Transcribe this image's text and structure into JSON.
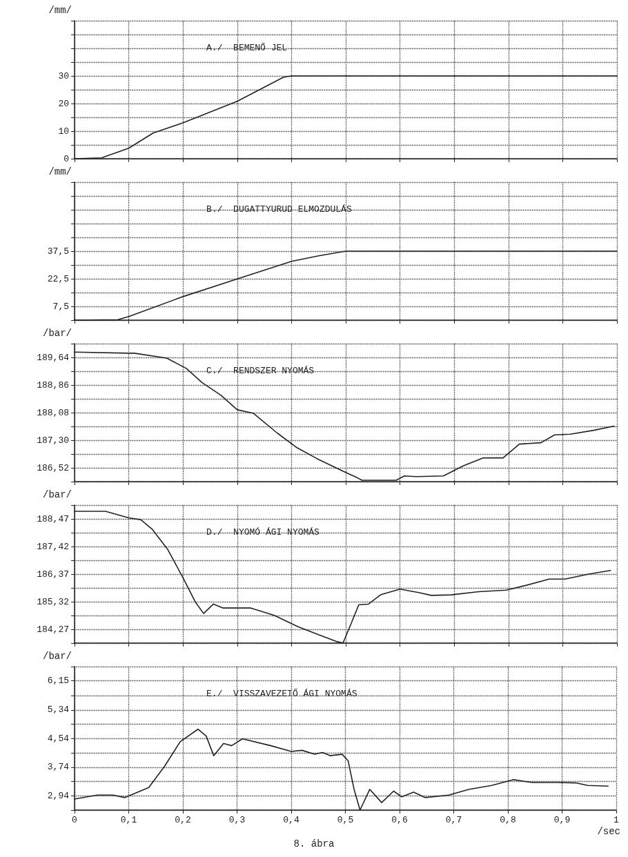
{
  "chart_data": [
    {
      "type": "line",
      "title": "A./  BEMENŐ JEL",
      "ylabel": "/mm/",
      "tick_labels": "y",
      "grid": true,
      "marker": "none",
      "line_style": "solid",
      "xlim": [
        0,
        1
      ],
      "ylim": [
        0,
        50
      ],
      "xticks": [
        0,
        0.1,
        0.2,
        0.3,
        0.4,
        0.5,
        0.6,
        0.7,
        0.8,
        0.9,
        1
      ],
      "yticks": [
        0,
        {
          "value": 5,
          "label": null
        },
        10,
        {
          "value": 15,
          "label": null
        },
        20,
        {
          "value": 25,
          "label": null
        },
        30,
        {
          "value": 35,
          "label": null
        },
        {
          "value": 40,
          "label": null
        },
        {
          "value": 45,
          "label": null
        },
        {
          "value": 50,
          "label": null
        }
      ],
      "series": [
        {
          "color": "#222222",
          "x": [
            0,
            0.05,
            0.1,
            0.145,
            0.2,
            0.3,
            0.385,
            0.4,
            0.5,
            0.6,
            0.7,
            0.8,
            0.9,
            1
          ],
          "values": [
            0,
            0.3,
            3.8,
            9.3,
            13,
            20.8,
            29.5,
            30,
            30,
            30,
            30,
            30,
            30,
            30
          ]
        }
      ]
    },
    {
      "type": "line",
      "title": "B./  DUGATTYURUD ELMOZDULÁS",
      "ylabel": "/mm/",
      "tick_labels": "y",
      "grid": true,
      "marker": "none",
      "line_style": "solid",
      "xlim": [
        0,
        1
      ],
      "ylim": [
        0,
        75
      ],
      "xticks": [
        0,
        0.1,
        0.2,
        0.3,
        0.4,
        0.5,
        0.6,
        0.7,
        0.8,
        0.9,
        1
      ],
      "yticks": [
        {
          "value": 0,
          "label": null
        },
        {
          "value": 7.5,
          "label": "7,5"
        },
        {
          "value": 15,
          "label": null
        },
        {
          "value": 22.5,
          "label": "22,5"
        },
        {
          "value": 30,
          "label": null
        },
        {
          "value": 37.5,
          "label": "37,5"
        },
        {
          "value": 45,
          "label": null
        },
        {
          "value": 52.5,
          "label": null
        },
        {
          "value": 60,
          "label": null
        },
        {
          "value": 67.5,
          "label": null
        },
        {
          "value": 75,
          "label": null
        }
      ],
      "series": [
        {
          "color": "#222222",
          "x": [
            0,
            0.08,
            0.1,
            0.2,
            0.3,
            0.4,
            0.45,
            0.5,
            0.6,
            0.7,
            0.8,
            0.9,
            1
          ],
          "values": [
            0,
            0.3,
            2,
            12.8,
            22.4,
            32,
            35,
            37.5,
            37.5,
            37.5,
            37.5,
            37.5,
            37.5
          ]
        }
      ]
    },
    {
      "type": "line",
      "title": "C./  RENDSZER NYOMÁS",
      "ylabel": "/bar/",
      "tick_labels": "y",
      "grid": true,
      "marker": "none",
      "line_style": "solid",
      "xlim": [
        0,
        1
      ],
      "ylim": [
        186.13,
        190.03
      ],
      "xticks": [
        0,
        0.1,
        0.2,
        0.3,
        0.4,
        0.5,
        0.6,
        0.7,
        0.8,
        0.9,
        1
      ],
      "yticks": [
        {
          "value": 186.13,
          "label": null
        },
        {
          "value": 186.52,
          "label": "186,52"
        },
        {
          "value": 186.91,
          "label": null
        },
        {
          "value": 187.3,
          "label": "187,30"
        },
        {
          "value": 187.69,
          "label": null
        },
        {
          "value": 188.08,
          "label": "188,08"
        },
        {
          "value": 188.47,
          "label": null
        },
        {
          "value": 188.86,
          "label": "188,86"
        },
        {
          "value": 189.25,
          "label": null
        },
        {
          "value": 189.64,
          "label": "189,64"
        },
        {
          "value": 190.03,
          "label": null
        }
      ],
      "series": [
        {
          "color": "#222222",
          "x": [
            0,
            0.1,
            0.11,
            0.17,
            0.206,
            0.235,
            0.27,
            0.3,
            0.33,
            0.374,
            0.41,
            0.447,
            0.49,
            0.52,
            0.53,
            0.593,
            0.608,
            0.63,
            0.68,
            0.717,
            0.753,
            0.79,
            0.82,
            0.86,
            0.885,
            0.914,
            0.957,
            0.995
          ],
          "values": [
            189.79,
            189.76,
            189.76,
            189.62,
            189.33,
            188.93,
            188.57,
            188.16,
            188.06,
            187.5,
            187.09,
            186.78,
            186.46,
            186.25,
            186.17,
            186.17,
            186.29,
            186.27,
            186.29,
            186.58,
            186.8,
            186.8,
            187.19,
            187.23,
            187.45,
            187.47,
            187.58,
            187.7
          ]
        }
      ]
    },
    {
      "type": "line",
      "title": "D./  NYOMÓ ÁGI NYOMÁS",
      "ylabel": "/bar/",
      "tick_labels": "y",
      "grid": true,
      "marker": "none",
      "line_style": "solid",
      "xlim": [
        0,
        1
      ],
      "ylim": [
        183.745,
        188.995
      ],
      "xticks": [
        0,
        0.1,
        0.2,
        0.3,
        0.4,
        0.5,
        0.6,
        0.7,
        0.8,
        0.9,
        1
      ],
      "yticks": [
        {
          "value": 183.745,
          "label": null
        },
        {
          "value": 184.27,
          "label": "184,27"
        },
        {
          "value": 184.795,
          "label": null
        },
        {
          "value": 185.32,
          "label": "185,32"
        },
        {
          "value": 185.845,
          "label": null
        },
        {
          "value": 186.37,
          "label": "186,37"
        },
        {
          "value": 186.895,
          "label": null
        },
        {
          "value": 187.42,
          "label": "187,42"
        },
        {
          "value": 187.945,
          "label": null
        },
        {
          "value": 188.47,
          "label": "188,47"
        },
        {
          "value": 188.995,
          "label": null
        }
      ],
      "series": [
        {
          "color": "#222222",
          "x": [
            0,
            0.057,
            0.1,
            0.122,
            0.143,
            0.172,
            0.2,
            0.223,
            0.238,
            0.256,
            0.274,
            0.325,
            0.368,
            0.412,
            0.448,
            0.484,
            0.495,
            0.509,
            0.524,
            0.542,
            0.564,
            0.6,
            0.636,
            0.658,
            0.694,
            0.745,
            0.796,
            0.832,
            0.875,
            0.904,
            0.948,
            0.988
          ],
          "values": [
            188.76,
            188.76,
            188.51,
            188.44,
            188.08,
            187.3,
            186.23,
            185.3,
            184.87,
            185.23,
            185.08,
            185.08,
            184.8,
            184.37,
            184.08,
            183.8,
            183.75,
            184.44,
            185.2,
            185.23,
            185.58,
            185.8,
            185.66,
            185.56,
            185.58,
            185.7,
            185.76,
            185.94,
            186.18,
            186.18,
            186.37,
            186.51
          ]
        }
      ]
    },
    {
      "type": "line",
      "title": "E./  VISSZAVEZETŐ ÁGI NYOMÁS",
      "ylabel": "/bar/",
      "xlabel": "/sec",
      "annotations": [
        "8. ábra"
      ],
      "grid": true,
      "marker": "none",
      "line_style": "solid",
      "xlim": [
        0,
        1
      ],
      "ylim": [
        2.54,
        6.55
      ],
      "xticks": [
        0,
        {
          "value": 0.1,
          "label": "0,1"
        },
        {
          "value": 0.2,
          "label": "0,2"
        },
        {
          "value": 0.3,
          "label": "0,3"
        },
        {
          "value": 0.4,
          "label": "0,4"
        },
        {
          "value": 0.5,
          "label": "0,5"
        },
        {
          "value": 0.6,
          "label": "0,6"
        },
        {
          "value": 0.7,
          "label": "0,7"
        },
        {
          "value": 0.8,
          "label": "0,8"
        },
        {
          "value": 0.9,
          "label": "0,9"
        },
        1
      ],
      "yticks": [
        {
          "value": 2.54,
          "label": null
        },
        {
          "value": 2.94,
          "label": "2,94"
        },
        {
          "value": 3.34,
          "label": null
        },
        {
          "value": 3.74,
          "label": "3,74"
        },
        {
          "value": 4.14,
          "label": null
        },
        {
          "value": 4.54,
          "label": "4,54"
        },
        {
          "value": 4.94,
          "label": null
        },
        {
          "value": 5.34,
          "label": "5,34"
        },
        {
          "value": 5.745,
          "label": null
        },
        {
          "value": 6.15,
          "label": "6,15"
        },
        {
          "value": 6.55,
          "label": null
        }
      ],
      "series": [
        {
          "color": "#222222",
          "x": [
            0,
            0.042,
            0.071,
            0.093,
            0.104,
            0.137,
            0.166,
            0.195,
            0.228,
            0.243,
            0.257,
            0.275,
            0.29,
            0.31,
            0.362,
            0.4,
            0.42,
            0.443,
            0.458,
            0.472,
            0.494,
            0.505,
            0.516,
            0.527,
            0.545,
            0.567,
            0.589,
            0.604,
            0.626,
            0.647,
            0.691,
            0.728,
            0.77,
            0.81,
            0.845,
            0.89,
            0.925,
            0.947,
            0.985
          ],
          "values": [
            2.85,
            2.96,
            2.96,
            2.89,
            2.96,
            3.17,
            3.76,
            4.45,
            4.8,
            4.61,
            4.06,
            4.4,
            4.34,
            4.53,
            4.34,
            4.18,
            4.21,
            4.1,
            4.15,
            4.06,
            4.1,
            3.92,
            3.12,
            2.54,
            3.12,
            2.75,
            3.07,
            2.91,
            3.04,
            2.89,
            2.96,
            3.12,
            3.23,
            3.39,
            3.31,
            3.31,
            3.3,
            3.23,
            3.21
          ]
        }
      ]
    }
  ]
}
